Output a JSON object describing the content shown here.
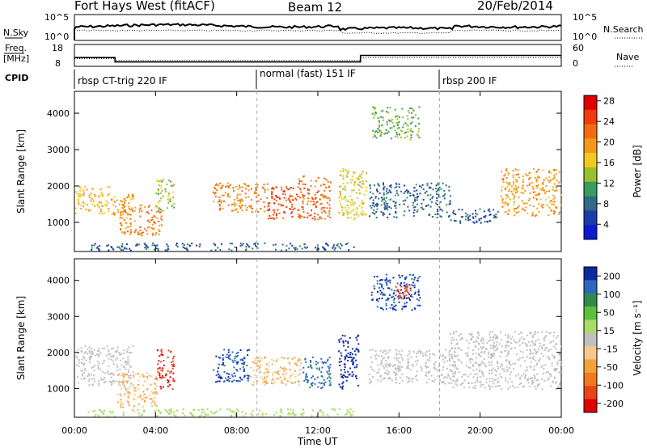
{
  "header": {
    "station": "Fort Hays West (fitACF)",
    "beam": "Beam 12",
    "date": "20/Feb/2014"
  },
  "top_panels": {
    "nsky_label": "N.Sky",
    "nsearch_label": "N.Search",
    "nsky_ticks": [
      "10^5",
      "10^0"
    ],
    "nsearch_ticks": [
      "10^5",
      "10^0"
    ],
    "freq_label_1": "Freq.",
    "freq_label_2": "[MHz]",
    "freq_ticks": [
      "18",
      "8"
    ],
    "nave_label": "Nave",
    "nave_ticks": [
      "60",
      "0"
    ],
    "cpid_label": "CPID",
    "cpid_segments": [
      {
        "label": "rbsp CT-trig 220 IF",
        "start_h": 0
      },
      {
        "label": "normal (fast) 151 IF",
        "start_h": 9
      },
      {
        "label": "rbsp 200 IF",
        "start_h": 18
      }
    ],
    "freq_series": [
      [
        0,
        12
      ],
      [
        2,
        12
      ],
      [
        2,
        10
      ],
      [
        14.1,
        10
      ],
      [
        14.1,
        13
      ],
      [
        24,
        13
      ]
    ],
    "nave_series": [
      [
        0,
        21
      ],
      [
        2,
        21
      ],
      [
        2,
        16
      ],
      [
        14.1,
        16
      ],
      [
        14.1,
        24
      ],
      [
        24,
        24
      ]
    ]
  },
  "axes": {
    "ylabel": "Slant Range [km]",
    "xlabel": "Time UT",
    "yticks": [
      1000,
      2000,
      3000,
      4000
    ],
    "ylim": [
      200,
      4600
    ],
    "xlim": [
      0,
      24
    ],
    "xticks": [
      "00:00",
      "04:00",
      "08:00",
      "12:00",
      "16:00",
      "20:00",
      "00:00"
    ]
  },
  "colorbars": {
    "power": {
      "label": "Power [dB]",
      "ticks": [
        "28",
        "24",
        "20",
        "16",
        "12",
        "8",
        "4"
      ],
      "colors": [
        "#e00000",
        "#f23a0a",
        "#f26b12",
        "#f59a18",
        "#f5c81e",
        "#99c02b",
        "#3a9b5e",
        "#2f6a86",
        "#1c3aa8",
        "#0a1ad0"
      ]
    },
    "velocity": {
      "label": "Velocity [m s⁻¹]",
      "ticks": [
        "200",
        "100",
        "50",
        "15",
        "-15",
        "-50",
        "-100",
        "-200"
      ],
      "colors": [
        "#0a2aa0",
        "#2a68c0",
        "#2f8c4e",
        "#5fbf3a",
        "#a8dd66",
        "#c0c0c0",
        "#f8c78c",
        "#f2a23a",
        "#ef7a20",
        "#e84418",
        "#e00000"
      ]
    }
  },
  "chart_data": [
    {
      "type": "heatmap",
      "title": "Power [dB]",
      "xlabel": "Time UT",
      "ylabel": "Slant Range [km]",
      "xlim": [
        0,
        24
      ],
      "ylim": [
        200,
        4600
      ],
      "units": "dB",
      "regions": [
        {
          "t0": 0.0,
          "t1": 1.7,
          "r0": 1250,
          "r1": 2000,
          "value": 18
        },
        {
          "t0": 1.8,
          "t1": 2.9,
          "r0": 1100,
          "r1": 1800,
          "value": 20
        },
        {
          "t0": 2.2,
          "t1": 4.3,
          "r0": 650,
          "r1": 1500,
          "value": 22
        },
        {
          "t0": 4.0,
          "t1": 4.9,
          "r0": 1300,
          "r1": 2200,
          "value": 14
        },
        {
          "t0": 6.8,
          "t1": 9.5,
          "r0": 1300,
          "r1": 2100,
          "value": 22
        },
        {
          "t0": 9.5,
          "t1": 11.0,
          "r0": 1100,
          "r1": 2000,
          "value": 26
        },
        {
          "t0": 11.0,
          "t1": 12.6,
          "r0": 1100,
          "r1": 2300,
          "value": 24
        },
        {
          "t0": 13.0,
          "t1": 14.4,
          "r0": 1100,
          "r1": 2500,
          "value": 16
        },
        {
          "t0": 14.6,
          "t1": 17.0,
          "r0": 3300,
          "r1": 4200,
          "value": 12
        },
        {
          "t0": 14.5,
          "t1": 18.5,
          "r0": 1150,
          "r1": 2100,
          "value": 6
        },
        {
          "t0": 18.5,
          "t1": 21.0,
          "r0": 1000,
          "r1": 1400,
          "value": 6
        },
        {
          "t0": 21.0,
          "t1": 24.0,
          "r0": 1200,
          "r1": 2500,
          "value": 20
        },
        {
          "t0": 0.5,
          "t1": 13.8,
          "r0": 250,
          "r1": 450,
          "value": 6
        }
      ]
    },
    {
      "type": "heatmap",
      "title": "Velocity [m s⁻¹]",
      "xlabel": "Time UT",
      "ylabel": "Slant Range [km]",
      "xlim": [
        0,
        24
      ],
      "ylim": [
        200,
        4600
      ],
      "units": "m/s",
      "regions": [
        {
          "t0": 0.0,
          "t1": 2.9,
          "r0": 1100,
          "r1": 2200,
          "value": 0
        },
        {
          "t0": 2.1,
          "t1": 4.1,
          "r0": 500,
          "r1": 1450,
          "value": -60
        },
        {
          "t0": 4.0,
          "t1": 4.9,
          "r0": 1000,
          "r1": 2100,
          "value": -180
        },
        {
          "t0": 6.8,
          "t1": 8.6,
          "r0": 1200,
          "r1": 2100,
          "value": 180
        },
        {
          "t0": 8.6,
          "t1": 11.2,
          "r0": 1100,
          "r1": 1900,
          "value": -60
        },
        {
          "t0": 11.2,
          "t1": 12.6,
          "r0": 1000,
          "r1": 1900,
          "value": 150
        },
        {
          "t0": 13.0,
          "t1": 14.0,
          "r0": 1000,
          "r1": 2500,
          "value": 200
        },
        {
          "t0": 14.6,
          "t1": 17.0,
          "r0": 3200,
          "r1": 4200,
          "value": 180
        },
        {
          "t0": 15.8,
          "t1": 16.6,
          "r0": 3500,
          "r1": 3900,
          "value": -150
        },
        {
          "t0": 14.5,
          "t1": 18.5,
          "r0": 1150,
          "r1": 2100,
          "value": 0
        },
        {
          "t0": 18.5,
          "t1": 24.0,
          "r0": 1000,
          "r1": 2600,
          "value": 0
        },
        {
          "t0": 0.5,
          "t1": 13.8,
          "r0": 250,
          "r1": 450,
          "value": 40
        }
      ]
    }
  ]
}
